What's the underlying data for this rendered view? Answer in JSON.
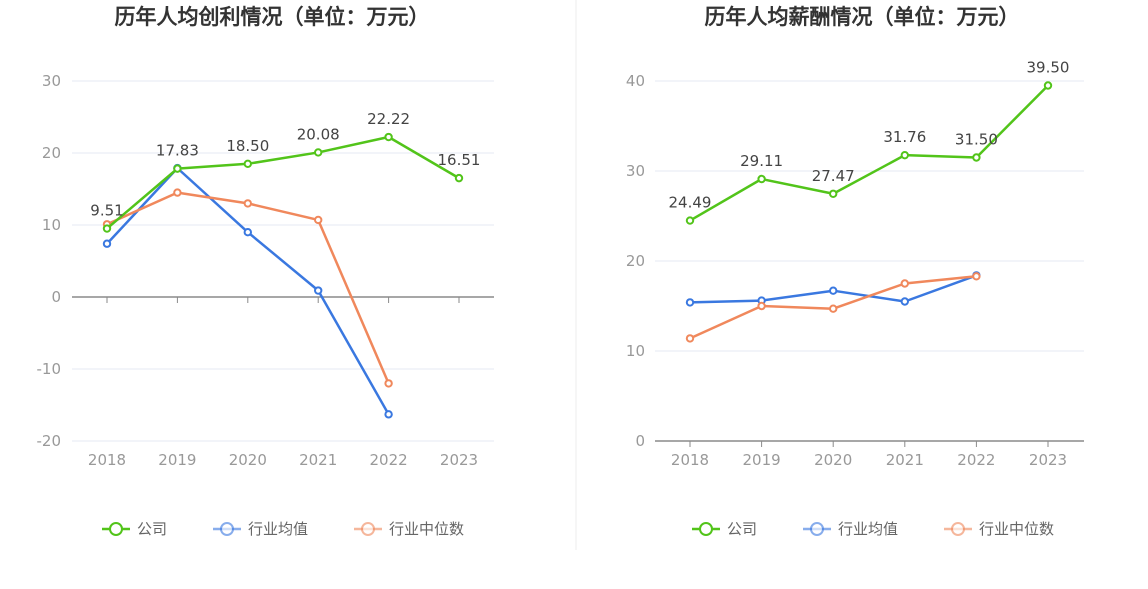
{
  "colors": {
    "company": "#52c41a",
    "industry_avg": "#3a78e0",
    "industry_median": "#f0885c",
    "grid": "#e6eaf3",
    "axis": "#8a8a8a",
    "divider": "#eeeeee"
  },
  "legend": {
    "company": "公司",
    "industry_avg": "行业均值",
    "industry_median": "行业中位数"
  },
  "chart_data": [
    {
      "type": "line",
      "title": "历年人均创利情况（单位：万元）",
      "categories": [
        "2018",
        "2019",
        "2020",
        "2021",
        "2022",
        "2023"
      ],
      "ylim": [
        -20,
        30
      ],
      "yticks": [
        "-20",
        "-10",
        "0",
        "10",
        "20",
        "30"
      ],
      "series": [
        {
          "name": "公司",
          "key": "company",
          "values": [
            9.51,
            17.83,
            18.5,
            20.08,
            22.22,
            16.51
          ],
          "labels": [
            "9.51",
            "17.83",
            "18.50",
            "20.08",
            "22.22",
            "16.51"
          ]
        },
        {
          "name": "行业均值",
          "key": "industry_avg",
          "values": [
            7.4,
            17.9,
            9.0,
            0.9,
            -16.3,
            null
          ]
        },
        {
          "name": "行业中位数",
          "key": "industry_median",
          "values": [
            10.1,
            14.5,
            13.0,
            10.7,
            -12.0,
            null
          ]
        }
      ]
    },
    {
      "type": "line",
      "title": "历年人均薪酬情况（单位：万元）",
      "categories": [
        "2018",
        "2019",
        "2020",
        "2021",
        "2022",
        "2023"
      ],
      "ylim": [
        0,
        40
      ],
      "yticks": [
        "0",
        "10",
        "20",
        "30",
        "40"
      ],
      "series": [
        {
          "name": "公司",
          "key": "company",
          "values": [
            24.49,
            29.11,
            27.47,
            31.76,
            31.5,
            39.5
          ],
          "labels": [
            "24.49",
            "29.11",
            "27.47",
            "31.76",
            "31.50",
            "39.50"
          ]
        },
        {
          "name": "行业均值",
          "key": "industry_avg",
          "values": [
            15.4,
            15.6,
            16.7,
            15.5,
            18.4,
            null
          ]
        },
        {
          "name": "行业中位数",
          "key": "industry_median",
          "values": [
            11.4,
            15.0,
            14.7,
            17.5,
            18.3,
            null
          ]
        }
      ]
    }
  ]
}
